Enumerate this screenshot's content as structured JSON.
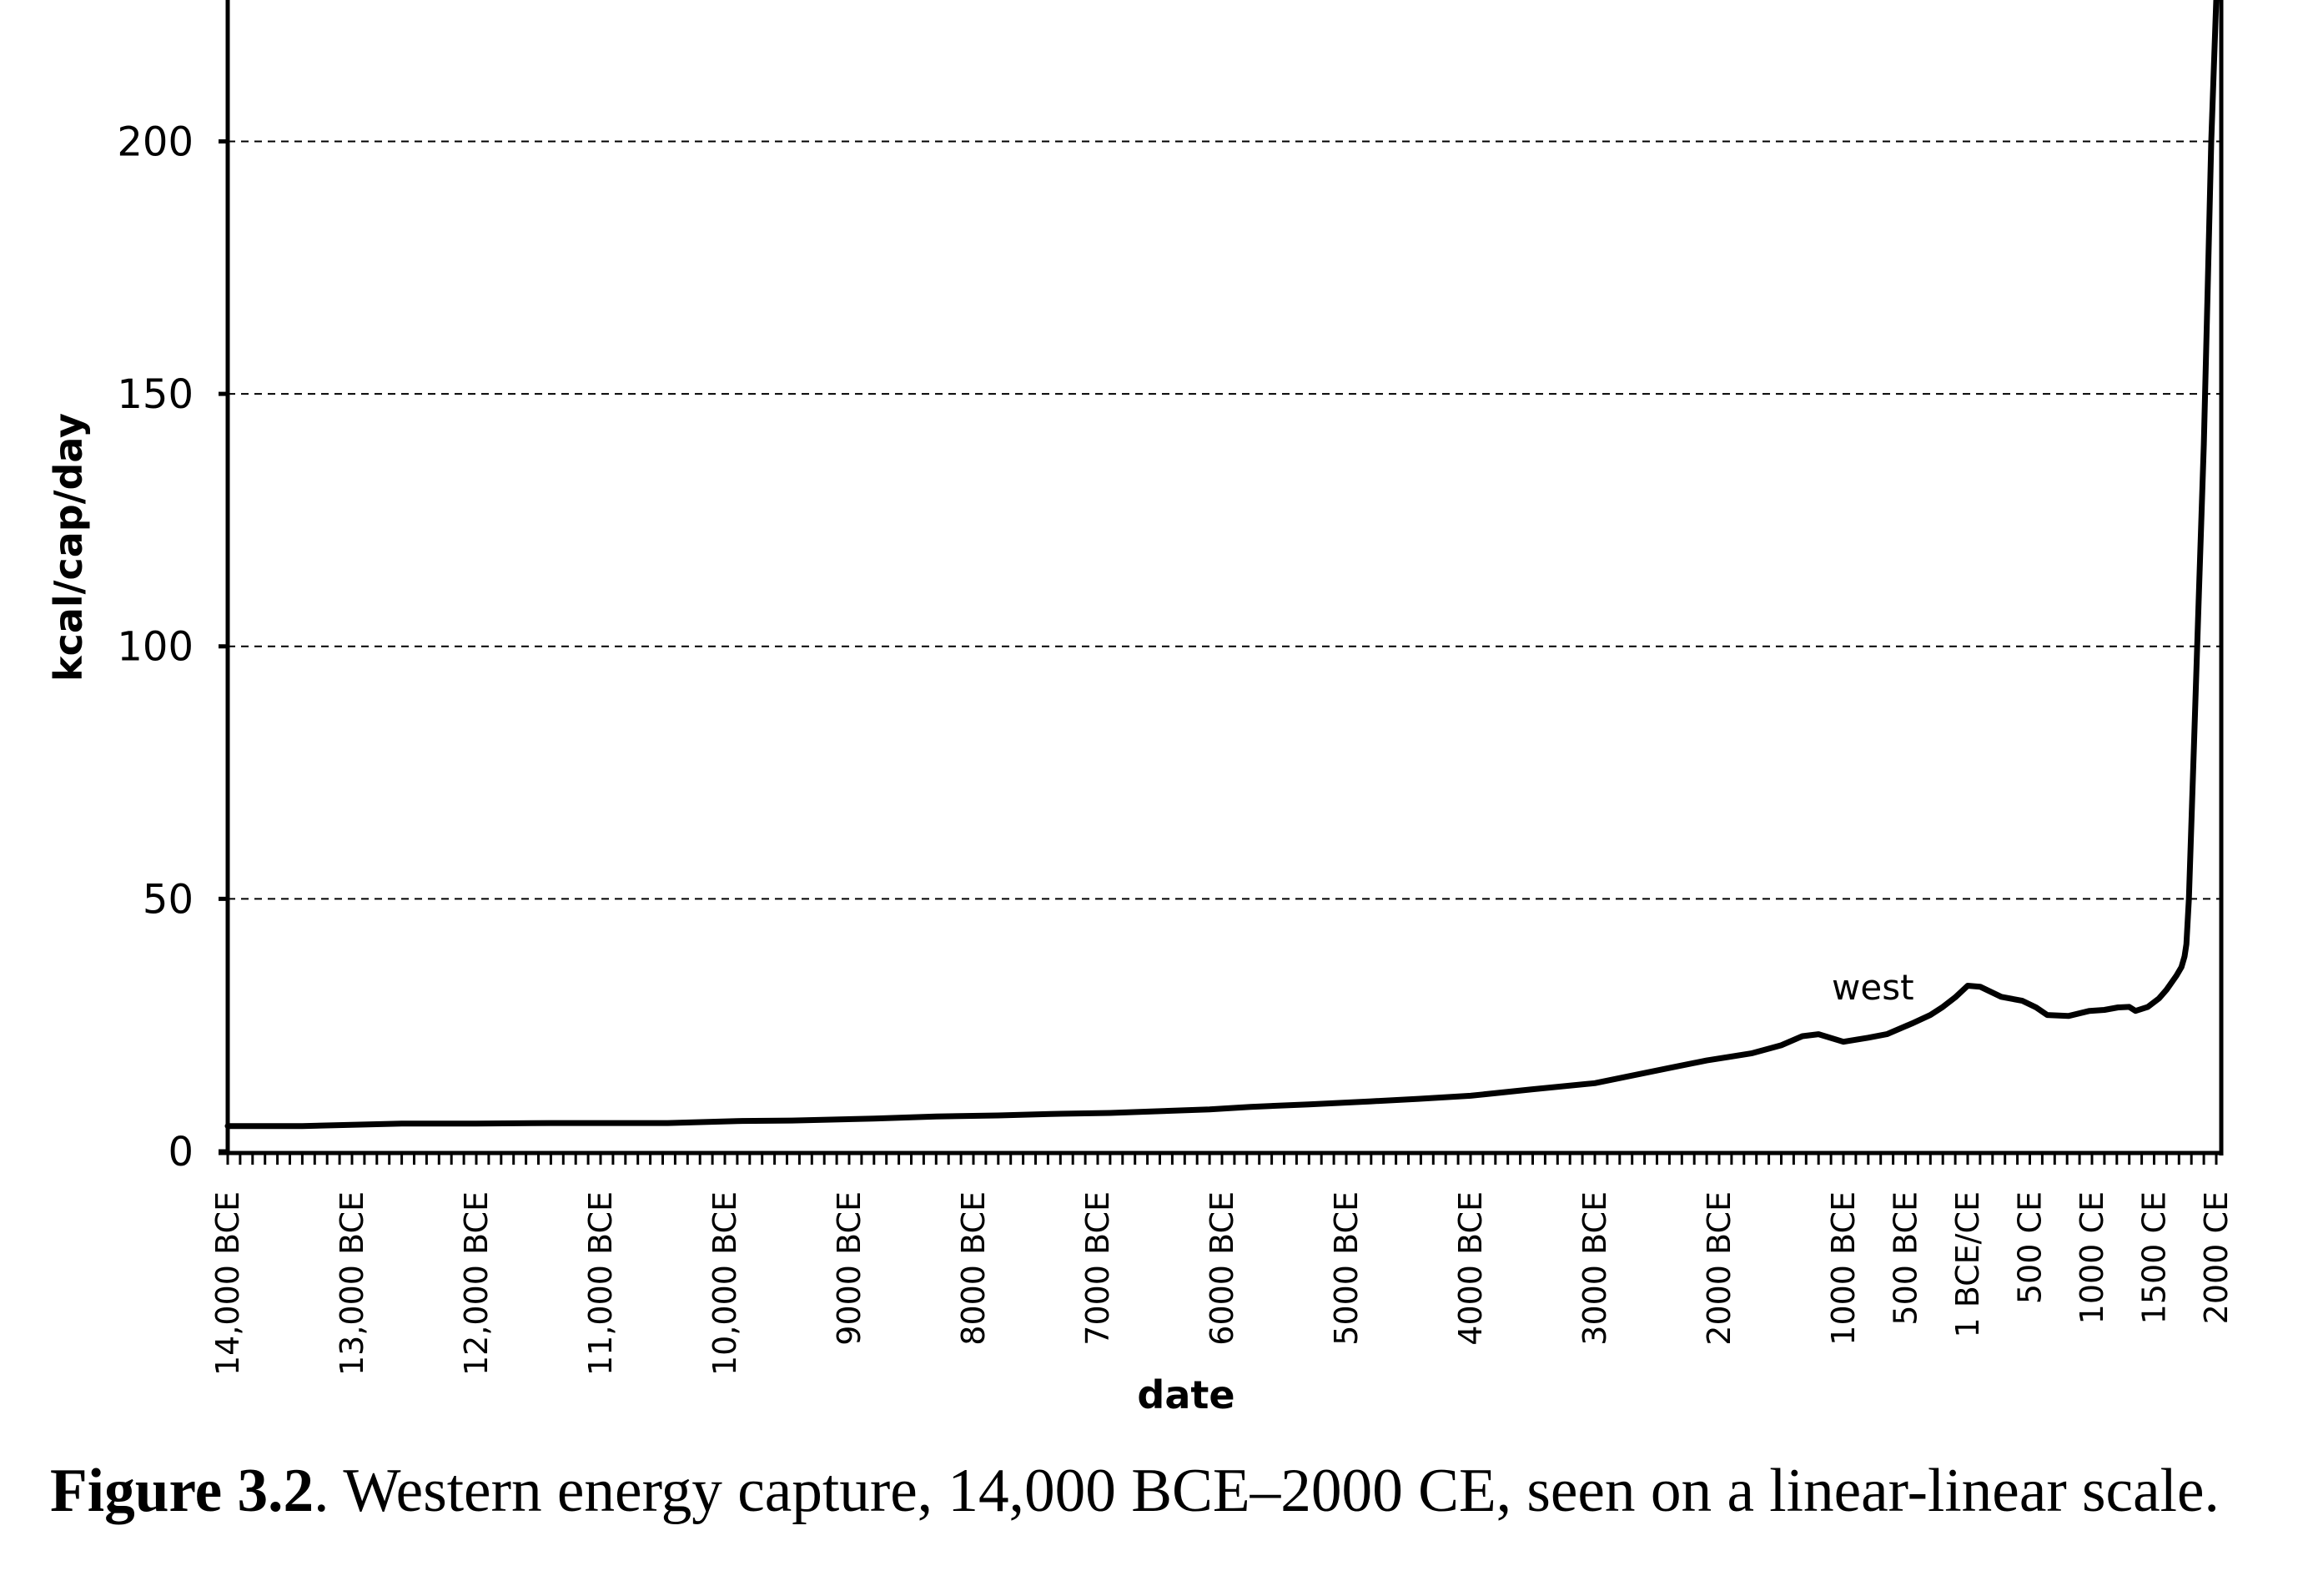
{
  "chart_data": {
    "type": "line",
    "title": "",
    "xlabel": "date",
    "ylabel": "kcal/cap/day",
    "xlim": [
      -14000,
      2000
    ],
    "ylim": [
      0,
      228
    ],
    "grid": "horizontal dashed at major y ticks",
    "y_ticks": [
      0,
      50,
      100,
      150,
      200
    ],
    "y_tick_labels": [
      "0",
      "50",
      "100",
      "150",
      "200"
    ],
    "x_minor_tick_step_years": 100,
    "x_ticks": [
      {
        "year": -14000,
        "label": "14,000 BCE"
      },
      {
        "year": -13000,
        "label": "13,000 BCE"
      },
      {
        "year": -12000,
        "label": "12,000 BCE"
      },
      {
        "year": -11000,
        "label": "11,000 BCE"
      },
      {
        "year": -10000,
        "label": "10,000 BCE"
      },
      {
        "year": -9000,
        "label": "9000 BCE"
      },
      {
        "year": -8000,
        "label": "8000 BCE"
      },
      {
        "year": -7000,
        "label": "7000 BCE"
      },
      {
        "year": -6000,
        "label": "6000 BCE"
      },
      {
        "year": -5000,
        "label": "5000 BCE"
      },
      {
        "year": -4000,
        "label": "4000 BCE"
      },
      {
        "year": -3000,
        "label": "3000 BCE"
      },
      {
        "year": -2000,
        "label": "2000 BCE"
      },
      {
        "year": -1000,
        "label": "1000 BCE"
      },
      {
        "year": -500,
        "label": "500 BCE"
      },
      {
        "year": 0,
        "label": "1 BCE/CE"
      },
      {
        "year": 500,
        "label": "500 CE"
      },
      {
        "year": 1000,
        "label": "1000 CE"
      },
      {
        "year": 1500,
        "label": "1500 CE"
      },
      {
        "year": 2000,
        "label": "2000 CE"
      }
    ],
    "series": [
      {
        "name": "west",
        "x": [
          -14000,
          -13400,
          -12600,
          -12000,
          -11400,
          -11000,
          -10460,
          -9900,
          -9460,
          -8800,
          -8300,
          -7800,
          -7380,
          -6900,
          -6570,
          -6100,
          -5770,
          -5300,
          -4800,
          -4420,
          -4000,
          -3500,
          -3000,
          -2700,
          -2400,
          -2100,
          -1740,
          -1500,
          -1330,
          -1200,
          -1000,
          -800,
          -650,
          -450,
          -300,
          -200,
          -100,
          0,
          100,
          270,
          440,
          550,
          640,
          810,
          980,
          1100,
          1210,
          1300,
          1350,
          1450,
          1540,
          1600,
          1680,
          1720,
          1745,
          1760,
          1780,
          1820,
          1860,
          1900,
          1930,
          1960,
          2000
        ],
        "values": [
          5.0,
          5.0,
          5.5,
          5.5,
          5.6,
          5.6,
          5.6,
          6.0,
          6.1,
          6.5,
          6.9,
          7.1,
          7.4,
          7.6,
          7.9,
          8.3,
          8.8,
          9.3,
          9.9,
          10.4,
          11.0,
          12.3,
          13.5,
          15.0,
          16.5,
          18.0,
          19.4,
          21.0,
          22.8,
          23.2,
          21.7,
          22.5,
          23.2,
          25.3,
          27.0,
          28.6,
          30.5,
          32.8,
          32.6,
          30.6,
          29.8,
          28.5,
          27.0,
          26.8,
          27.8,
          28.0,
          28.5,
          28.6,
          27.8,
          28.6,
          30.3,
          32.0,
          34.8,
          36.5,
          38.6,
          41.0,
          50.0,
          80.0,
          110.0,
          140.0,
          170.0,
          200.0,
          228.0
        ]
      }
    ],
    "annotations": [
      {
        "text": "west",
        "near": "line around 1000 BCE"
      }
    ],
    "legend": "none"
  },
  "caption": {
    "label": "Figure 3.2",
    "text": ". Western energy capture, 14,000 BCE–2000 CE, seen on a linear-linear scale."
  }
}
